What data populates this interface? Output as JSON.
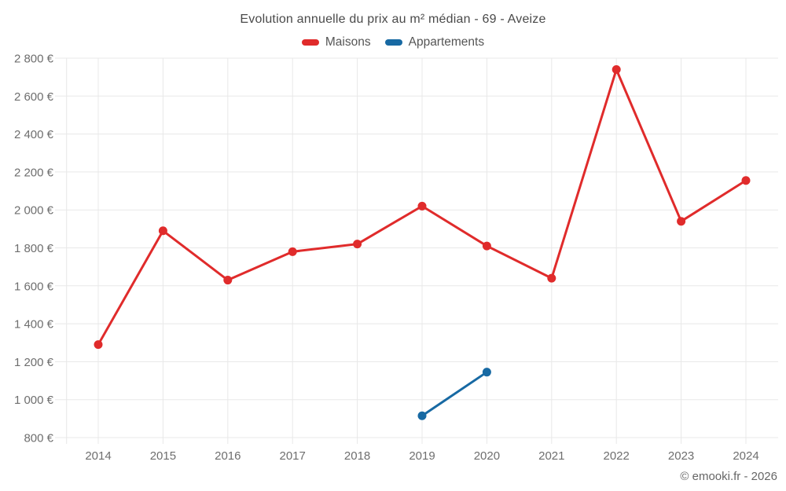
{
  "page": {
    "title": "Evolution annuelle du prix au m² médian - 69 - Aveize",
    "footer": "© emooki.fr - 2026"
  },
  "chart_data": {
    "type": "line",
    "title": "Evolution annuelle du prix au m² médian - 69 - Aveize",
    "categories": [
      "2014",
      "2015",
      "2016",
      "2017",
      "2018",
      "2019",
      "2020",
      "2021",
      "2022",
      "2023",
      "2024"
    ],
    "series": [
      {
        "name": "Maisons",
        "color": "#e02b2b",
        "values": [
          1290,
          1890,
          1630,
          1780,
          1820,
          2020,
          1810,
          1640,
          2740,
          1940,
          2155
        ]
      },
      {
        "name": "Appartements",
        "color": "#1769a3",
        "values": [
          null,
          null,
          null,
          null,
          null,
          915,
          1145,
          null,
          null,
          null,
          null
        ]
      }
    ],
    "ylim": [
      800,
      2800
    ],
    "ytick_step": 200,
    "ytick_suffix": " €",
    "grid": true,
    "legend_position": "top",
    "colors": {
      "gridline": "#e8e8e8",
      "tick_text": "#6e6e6e",
      "title_text": "#4a4a4a",
      "legend_text": "#555555",
      "footer_text": "#666666"
    }
  }
}
